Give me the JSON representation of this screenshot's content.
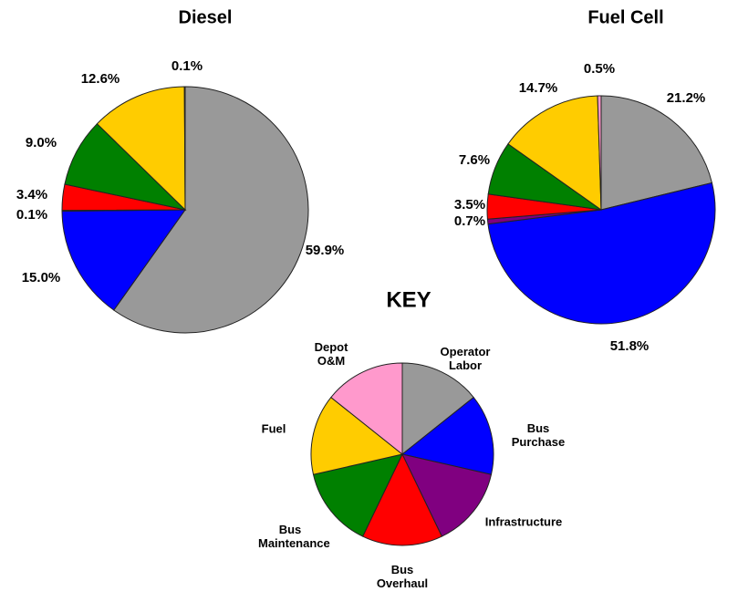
{
  "chart_data": [
    {
      "type": "pie",
      "title": "Diesel",
      "values": [
        59.9,
        15.0,
        0.1,
        3.4,
        9.0,
        12.6,
        0.1
      ],
      "value_labels": [
        "59.9%",
        "15.0%",
        "0.1%",
        "3.4%",
        "9.0%",
        "12.6%",
        "0.1%"
      ]
    },
    {
      "type": "pie",
      "title": "Fuel Cell",
      "values": [
        21.2,
        51.8,
        0.7,
        3.5,
        7.6,
        14.7,
        0.5
      ],
      "value_labels": [
        "21.2%",
        "51.8%",
        "0.7%",
        "3.5%",
        "7.6%",
        "14.7%",
        "0.5%"
      ]
    }
  ],
  "key": {
    "title": "KEY",
    "labels": [
      "Operator Labor",
      "Bus Purchase",
      "Infrastructure",
      "Bus Overhaul",
      "Bus Maintenance",
      "Fuel",
      "Depot O&M"
    ],
    "colors": [
      "#999999",
      "#0000ff",
      "#800080",
      "#ff0000",
      "#008000",
      "#ffcc00",
      "#ff99cc"
    ]
  }
}
